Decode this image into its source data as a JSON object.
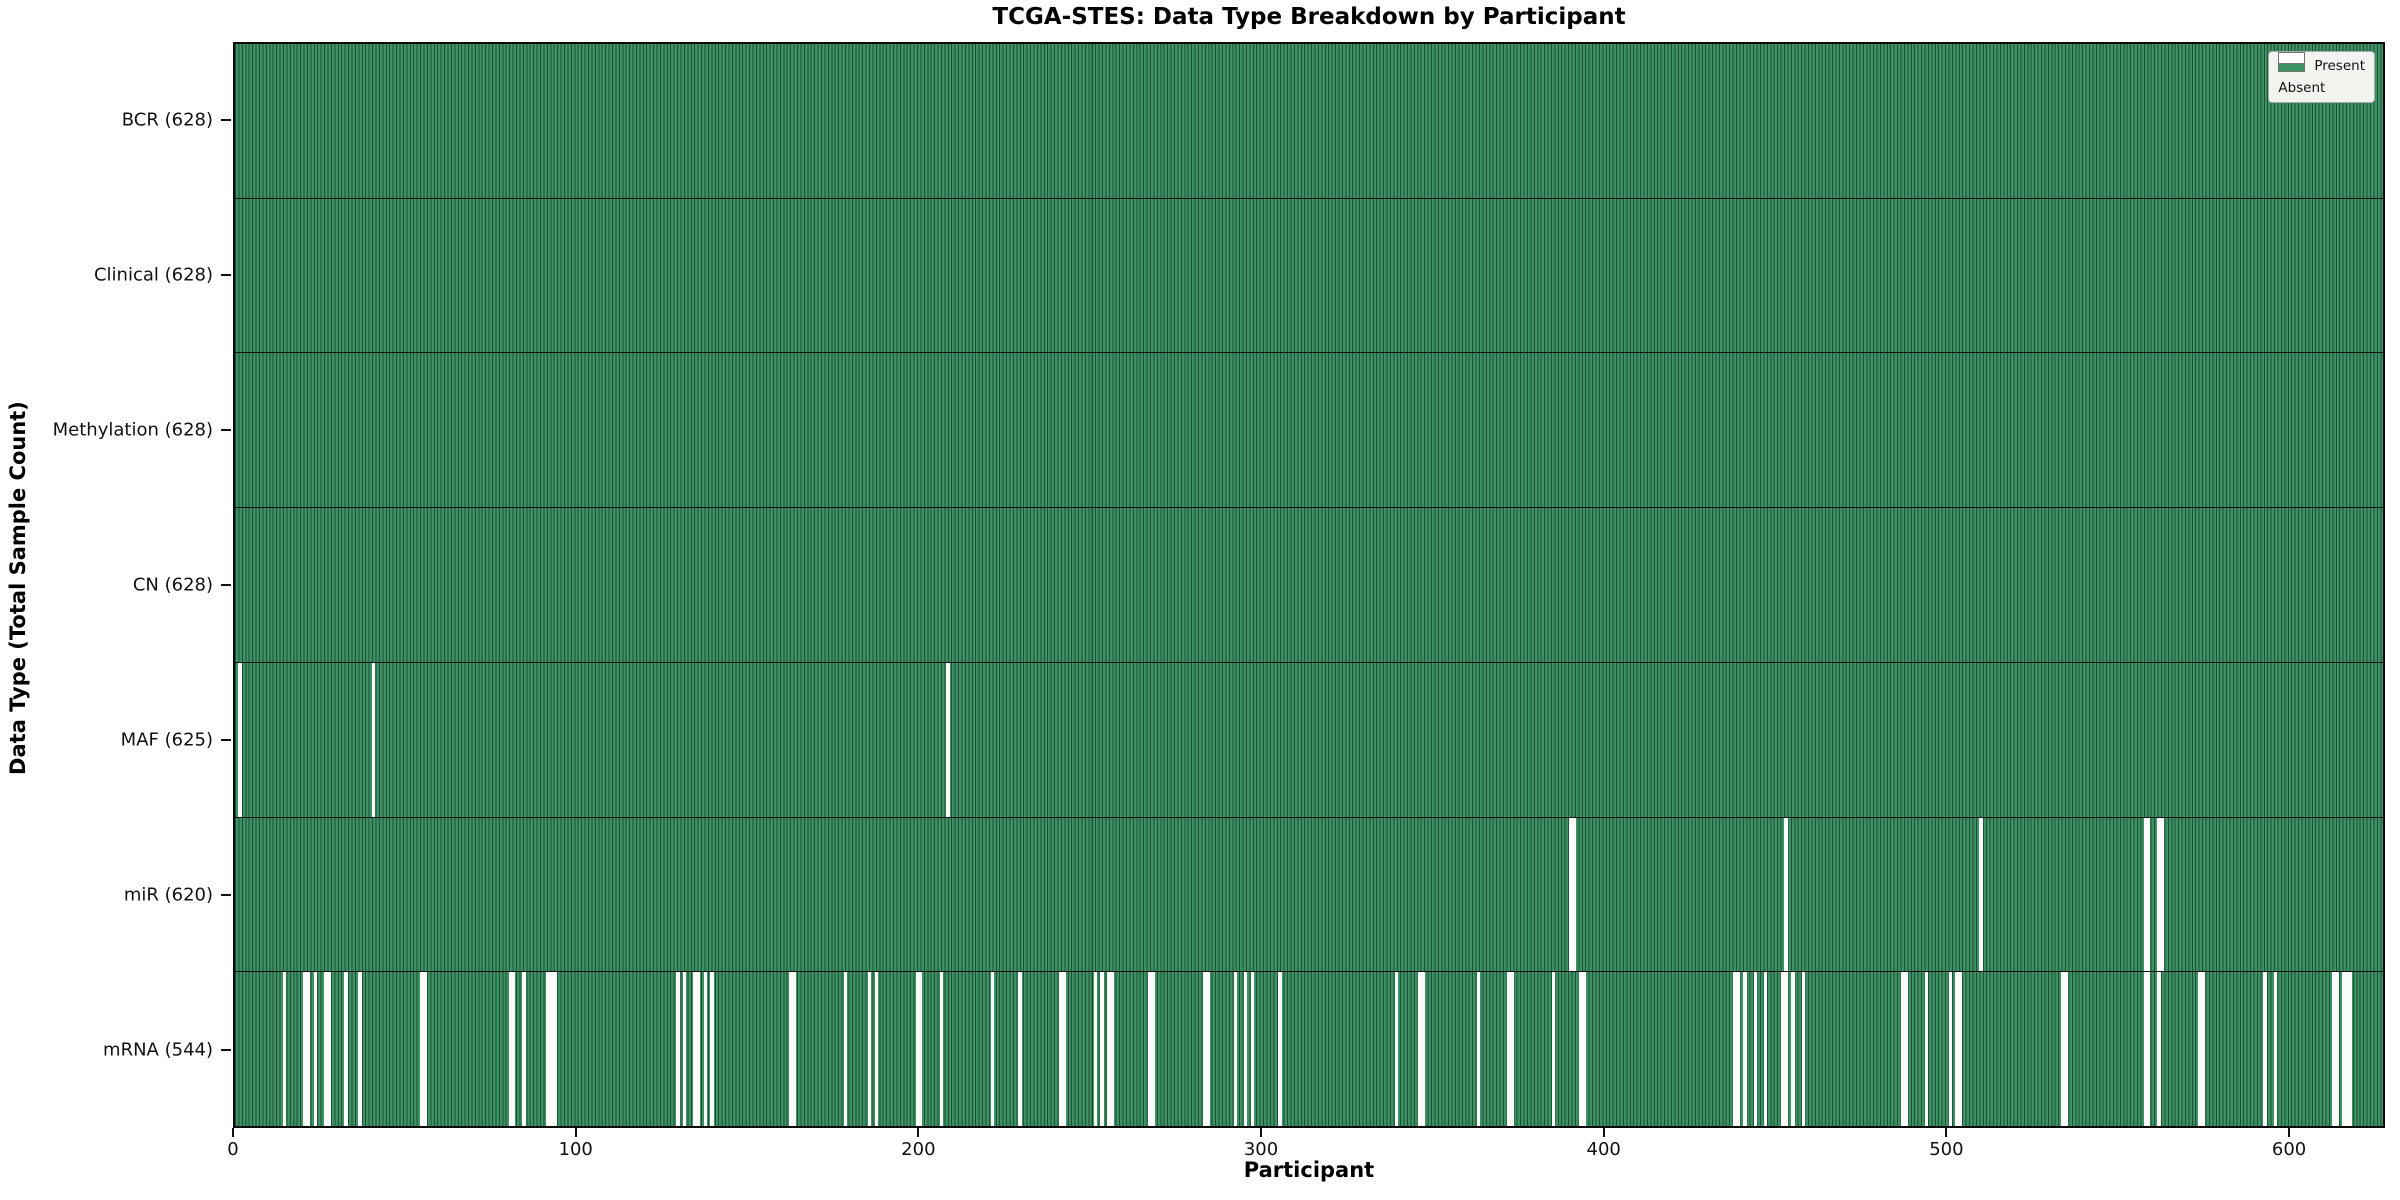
{
  "figure": {
    "title": "TCGA-STES: Data Type Breakdown by Participant",
    "xlabel": "Participant",
    "ylabel": "Data Type (Total Sample Count)"
  },
  "legend": {
    "present_label": "Present",
    "absent_label": "Absent"
  },
  "colors": {
    "present_fill": "#3E9164",
    "bar_edge": "#1C5233",
    "absent_fill": "#FBFBF9",
    "row_divider": "#101010",
    "plot_border": "#0A0A0A",
    "legend_bg": "#F2F4F0",
    "legend_border": "#A9ADA9"
  },
  "chart_data": {
    "type": "heatmap",
    "title": "TCGA-STES: Data Type Breakdown by Participant",
    "xlabel": "Participant",
    "ylabel": "Data Type (Total Sample Count)",
    "n_participants": 628,
    "x_ticks": [
      0,
      100,
      200,
      300,
      400,
      500,
      600
    ],
    "legend": [
      "Present",
      "Absent"
    ],
    "legend_position": "upper right",
    "grid": false,
    "rows": [
      {
        "label": "BCR (628)",
        "name": "BCR",
        "present_count": 628,
        "absent_participants": []
      },
      {
        "label": "Clinical (628)",
        "name": "Clinical",
        "present_count": 628,
        "absent_participants": []
      },
      {
        "label": "Methylation (628)",
        "name": "Methylation",
        "present_count": 628,
        "absent_participants": []
      },
      {
        "label": "CN (628)",
        "name": "CN",
        "present_count": 628,
        "absent_participants": []
      },
      {
        "label": "MAF (625)",
        "name": "MAF",
        "present_count": 625,
        "absent_participants": [
          1,
          40,
          208
        ]
      },
      {
        "label": "miR (620)",
        "name": "miR",
        "present_count": 620,
        "absent_participants": [
          390,
          391,
          453,
          510,
          558,
          559,
          562,
          563
        ]
      },
      {
        "label": "mRNA (544)",
        "name": "mRNA",
        "present_count": 544,
        "absent_participants": [
          14,
          20,
          21,
          23,
          26,
          27,
          32,
          36,
          54,
          55,
          80,
          81,
          84,
          91,
          92,
          93,
          129,
          131,
          134,
          135,
          137,
          139,
          162,
          163,
          178,
          185,
          187,
          199,
          200,
          206,
          221,
          229,
          241,
          242,
          251,
          253,
          255,
          256,
          267,
          268,
          283,
          284,
          292,
          295,
          297,
          305,
          339,
          346,
          347,
          363,
          372,
          373,
          385,
          393,
          394,
          438,
          439,
          441,
          444,
          447,
          452,
          453,
          455,
          458,
          487,
          488,
          494,
          501,
          503,
          504,
          534,
          535,
          558,
          559,
          562,
          574,
          575,
          593,
          596,
          613,
          614,
          616,
          617,
          618
        ]
      }
    ]
  }
}
